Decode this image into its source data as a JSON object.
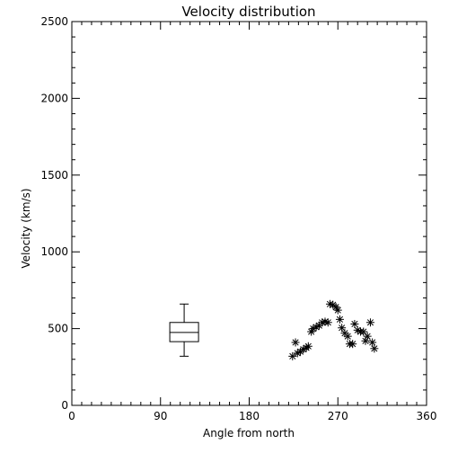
{
  "chart_data": {
    "type": "scatter",
    "title": "Velocity distribution",
    "xlabel": "Angle from north",
    "ylabel": "Velocity (km/s)",
    "xlim": [
      0,
      360
    ],
    "ylim": [
      0,
      2500
    ],
    "x_ticks": [
      0,
      90,
      180,
      270,
      360
    ],
    "y_ticks": [
      0,
      500,
      1000,
      1500,
      2000,
      2500
    ],
    "x_minor_step": 10,
    "y_minor_step": 100,
    "grid": false,
    "marker": "asterisk",
    "boxplot": {
      "x": 114,
      "min": 320,
      "q1": 415,
      "median": 475,
      "q3": 540,
      "max": 660
    },
    "points": [
      {
        "x": 224,
        "y": 320
      },
      {
        "x": 227,
        "y": 410
      },
      {
        "x": 229,
        "y": 340
      },
      {
        "x": 232,
        "y": 350
      },
      {
        "x": 235,
        "y": 365
      },
      {
        "x": 238,
        "y": 375
      },
      {
        "x": 240,
        "y": 385
      },
      {
        "x": 243,
        "y": 480
      },
      {
        "x": 245,
        "y": 500
      },
      {
        "x": 248,
        "y": 510
      },
      {
        "x": 251,
        "y": 520
      },
      {
        "x": 254,
        "y": 540
      },
      {
        "x": 257,
        "y": 545
      },
      {
        "x": 260,
        "y": 540
      },
      {
        "x": 262,
        "y": 660
      },
      {
        "x": 265,
        "y": 655
      },
      {
        "x": 268,
        "y": 640
      },
      {
        "x": 270,
        "y": 620
      },
      {
        "x": 272,
        "y": 560
      },
      {
        "x": 274,
        "y": 505
      },
      {
        "x": 277,
        "y": 470
      },
      {
        "x": 280,
        "y": 450
      },
      {
        "x": 282,
        "y": 400
      },
      {
        "x": 285,
        "y": 400
      },
      {
        "x": 287,
        "y": 530
      },
      {
        "x": 290,
        "y": 490
      },
      {
        "x": 293,
        "y": 480
      },
      {
        "x": 296,
        "y": 480
      },
      {
        "x": 298,
        "y": 420
      },
      {
        "x": 300,
        "y": 450
      },
      {
        "x": 303,
        "y": 540
      },
      {
        "x": 305,
        "y": 410
      },
      {
        "x": 307,
        "y": 370
      }
    ]
  }
}
